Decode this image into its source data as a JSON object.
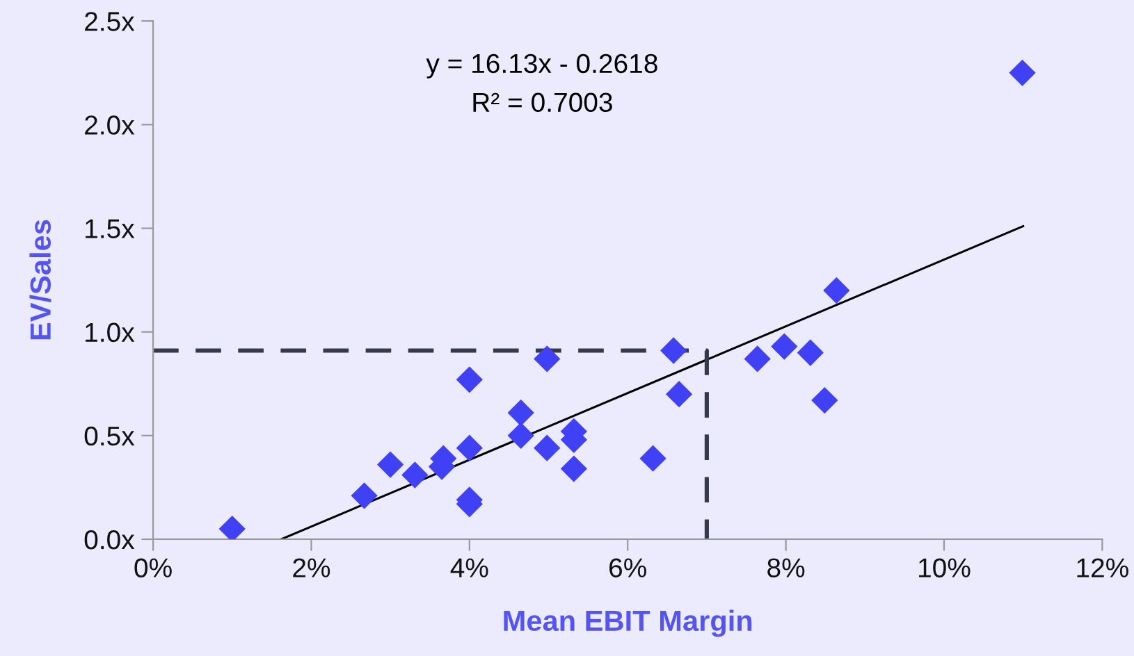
{
  "chart_data": {
    "type": "scatter",
    "xlabel": "Mean EBIT Margin",
    "ylabel": "EV/Sales",
    "annotations": [
      "y = 16.13x - 0.2618",
      "R² = 0.7003"
    ],
    "series": [
      {
        "color": "#4040f5",
        "marker": "diamond",
        "x": [
          1.0,
          2.67,
          3.0,
          3.31,
          3.65,
          3.67,
          4.0,
          4.0,
          4.0,
          4.0,
          4.65,
          4.65,
          4.98,
          4.98,
          5.32,
          5.32,
          5.32,
          6.32,
          6.58,
          6.65,
          7.64,
          7.98,
          8.31,
          8.49,
          8.64,
          10.99
        ],
        "values": [
          0.05,
          0.21,
          0.36,
          0.31,
          0.35,
          0.39,
          0.77,
          0.44,
          0.19,
          0.17,
          0.61,
          0.5,
          0.44,
          0.87,
          0.52,
          0.48,
          0.34,
          0.39,
          0.91,
          0.7,
          0.87,
          0.93,
          0.9,
          0.67,
          1.2,
          2.25
        ]
      },
      {
        "type": "line",
        "color": "#000000",
        "line_style": "solid",
        "x": [
          1.62,
          11.0
        ],
        "values": [
          0.0,
          1.51
        ]
      },
      {
        "type": "line",
        "color": "#353a4a",
        "line_style": "dashed",
        "x": [
          0.0,
          7.0,
          7.0
        ],
        "values": [
          0.91,
          0.91,
          0.0
        ]
      }
    ],
    "xlim": [
      0,
      12
    ],
    "ylim": [
      0,
      2.5
    ],
    "xticks": [
      {
        "value": 0,
        "label": "0%"
      },
      {
        "value": 2,
        "label": "2%"
      },
      {
        "value": 4,
        "label": "4%"
      },
      {
        "value": 6,
        "label": "6%"
      },
      {
        "value": 8,
        "label": "8%"
      },
      {
        "value": 10,
        "label": "10%"
      },
      {
        "value": 12,
        "label": "12%"
      }
    ],
    "yticks": [
      {
        "value": 0,
        "label": "0.0x"
      },
      {
        "value": 0.5,
        "label": "0.5x"
      },
      {
        "value": 1.0,
        "label": "1.0x"
      },
      {
        "value": 1.5,
        "label": "1.5x"
      },
      {
        "value": 2.0,
        "label": "2.0x"
      },
      {
        "value": 2.5,
        "label": "2.5x"
      }
    ],
    "grid": false,
    "legend": false
  }
}
